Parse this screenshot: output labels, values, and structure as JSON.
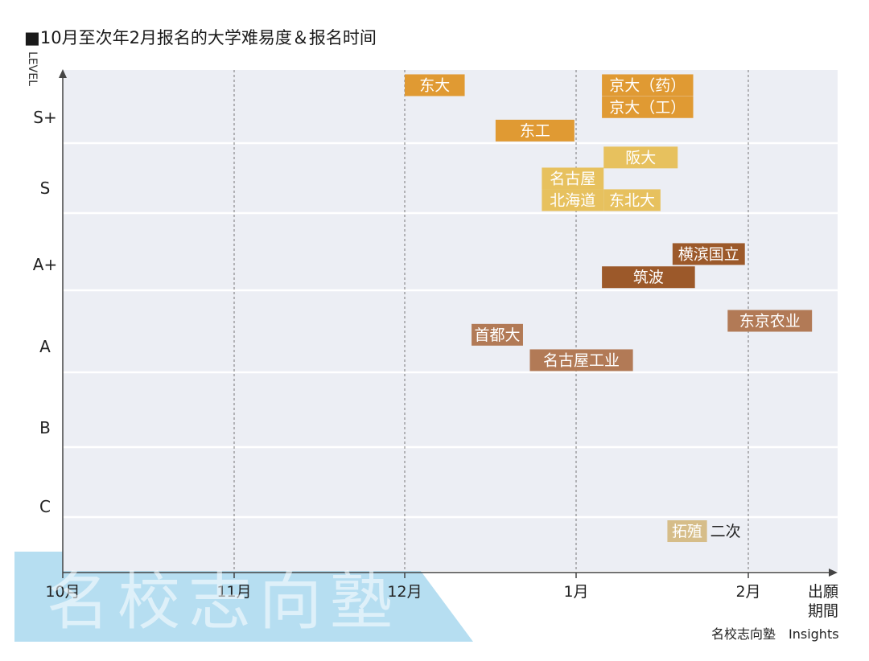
{
  "chart_data": {
    "type": "timeline-bar",
    "title": "■10月至次年2月报名的大学难易度＆报名时间",
    "y_axis_label": "LEVEL",
    "x_axis_label_line1": "出願",
    "x_axis_label_line2": "期間",
    "levels": [
      "S+",
      "S",
      "A+",
      "A",
      "B",
      "C"
    ],
    "months": [
      "10月",
      "11月",
      "12月",
      "1月",
      "2月"
    ],
    "grid": true,
    "items": [
      {
        "label": "东大",
        "level": "S+",
        "start_month": 2.0,
        "end_month": 2.35,
        "color": "#e09a33"
      },
      {
        "label": "京大（药）",
        "level": "S+",
        "start_month": 3.15,
        "end_month": 3.68,
        "color": "#e09a33"
      },
      {
        "label": "京大（工）",
        "level": "S+",
        "start_month": 3.15,
        "end_month": 3.68,
        "color": "#e09a33"
      },
      {
        "label": "东工",
        "level": "S+",
        "start_month": 2.53,
        "end_month": 2.99,
        "color": "#e09a33"
      },
      {
        "label": "阪大",
        "level": "S",
        "start_month": 3.16,
        "end_month": 3.59,
        "color": "#e7c15e"
      },
      {
        "label": "名古屋",
        "level": "S",
        "start_month": 2.8,
        "end_month": 3.16,
        "color": "#e7c15e"
      },
      {
        "label": "北海道",
        "level": "S",
        "start_month": 2.8,
        "end_month": 3.16,
        "color": "#e7c15e"
      },
      {
        "label": "东北大",
        "level": "S",
        "start_month": 3.16,
        "end_month": 3.49,
        "color": "#e7c15e"
      },
      {
        "label": "横滨国立",
        "level": "A+",
        "start_month": 3.56,
        "end_month": 3.98,
        "color": "#9c592a"
      },
      {
        "label": "筑波",
        "level": "A+",
        "start_month": 3.15,
        "end_month": 3.69,
        "color": "#9c592a"
      },
      {
        "label": "东京农业",
        "level": "A",
        "start_month": 3.88,
        "end_month": 4.37,
        "color": "#b27a56"
      },
      {
        "label": "首都大",
        "level": "A",
        "start_month": 2.39,
        "end_month": 2.69,
        "color": "#b27a56"
      },
      {
        "label": "名古屋工业",
        "level": "A",
        "start_month": 2.73,
        "end_month": 3.33,
        "color": "#b27a56"
      },
      {
        "label": "拓殖",
        "level": "C",
        "start_month": 3.53,
        "end_month": 3.76,
        "color": "#d6bd89"
      }
    ],
    "annotations": [
      "二次"
    ]
  },
  "watermark": "名校志向塾",
  "credit": "名校志向塾　Insights"
}
